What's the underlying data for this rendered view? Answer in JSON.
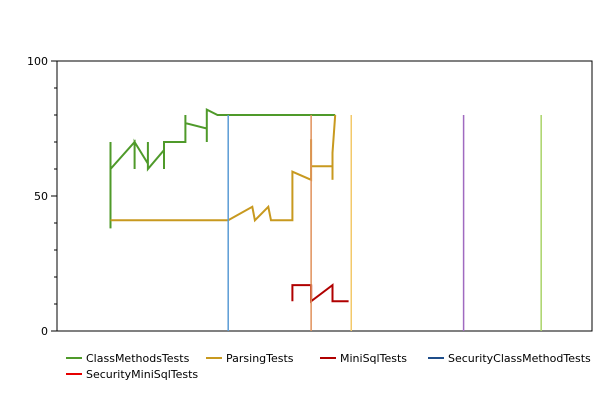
{
  "chart_data": {
    "type": "line",
    "title": "",
    "xlabel": "",
    "ylabel": "",
    "ylim": [
      0,
      100
    ],
    "xlim": [
      0,
      100
    ],
    "yticks": [
      0,
      50,
      100
    ],
    "ytick_labels": [
      "0",
      "50",
      "100"
    ],
    "grid": false,
    "legend_position": "bottom",
    "series": [
      {
        "name": "ClassMethodsTests",
        "color": "#4f9a2a",
        "x": [
          10,
          10,
          10,
          14.5,
          14.5,
          14.5,
          17,
          17,
          17,
          20,
          20,
          20,
          24,
          24,
          24,
          28,
          28,
          28,
          30,
          30,
          30,
          52
        ],
        "y": [
          38,
          70,
          60,
          70,
          60,
          70,
          62,
          70,
          60,
          67,
          60,
          70,
          70,
          80,
          77,
          75,
          70,
          82,
          80,
          80,
          80,
          80
        ]
      },
      {
        "name": "ParsingTests",
        "color": "#c8991f",
        "x": [
          10,
          32,
          36.5,
          37,
          39.5,
          40,
          44,
          44,
          47.5,
          47.5,
          47.5,
          51.5,
          51.5,
          52
        ],
        "y": [
          41,
          41,
          46,
          41,
          46,
          41,
          41,
          59,
          56,
          71,
          61,
          61,
          66,
          80
        ],
        "extra_segments": [
          {
            "x": [
              51.5,
              51.5
            ],
            "y": [
              56,
              66
            ]
          }
        ]
      },
      {
        "name": "MiniSqlTests",
        "color": "#b00000",
        "x": [
          44,
          44,
          47.5,
          47.5,
          51.5,
          51.5,
          54.5
        ],
        "y": [
          11,
          17,
          17,
          11,
          17,
          11,
          11
        ],
        "extra_segments": [
          {
            "x": [
              47.5,
              47.5
            ],
            "y": [
              11,
              17
            ]
          }
        ]
      },
      {
        "name": "SecurityClassMethodTests",
        "color": "#1f4e8a",
        "x": [],
        "y": []
      },
      {
        "name": "SecurityMiniSqlTests",
        "color": "#e60000",
        "x": [],
        "y": []
      }
    ],
    "vertical_lines": [
      {
        "x": 32,
        "y_top": 80,
        "color": "#5b9bd5"
      },
      {
        "x": 47.5,
        "y_top": 80,
        "color": "#e0905a"
      },
      {
        "x": 55,
        "y_top": 80,
        "color": "#f3c96a"
      },
      {
        "x": 76,
        "y_top": 80,
        "color": "#a06ac0"
      },
      {
        "x": 90.5,
        "y_top": 80,
        "color": "#a9d468"
      }
    ],
    "legend": [
      {
        "label": "ClassMethodsTests",
        "color": "#4f9a2a"
      },
      {
        "label": "ParsingTests",
        "color": "#c8991f"
      },
      {
        "label": "MiniSqlTests",
        "color": "#b00000"
      },
      {
        "label": "SecurityClassMethodTests",
        "color": "#1f4e8a"
      },
      {
        "label": "SecurityMiniSqlTests",
        "color": "#e60000"
      }
    ]
  }
}
